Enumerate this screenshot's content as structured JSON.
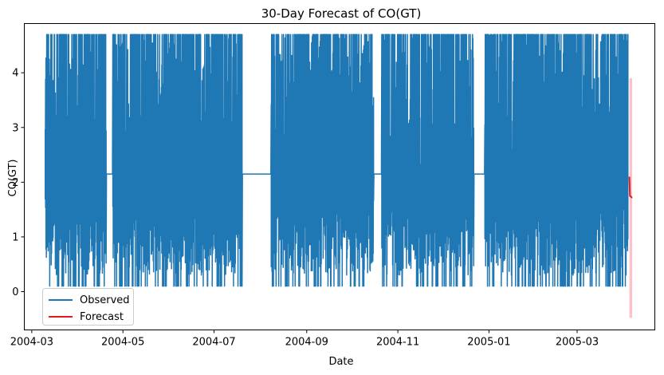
{
  "chart_data": {
    "type": "line",
    "title": "30-Day Forecast of CO(GT)",
    "xlabel": "Date",
    "ylabel": "CO(GT)",
    "xlim": [
      "2004-02-25",
      "2005-04-22"
    ],
    "ylim": [
      -0.7,
      4.9
    ],
    "x_ticks": [
      "2004-03",
      "2004-05",
      "2004-07",
      "2004-09",
      "2004-11",
      "2005-01",
      "2005-03"
    ],
    "y_ticks": [
      0,
      1,
      2,
      3,
      4
    ],
    "grid": false,
    "legend": {
      "position": "lower-left",
      "entries": [
        "Observed",
        "Forecast"
      ]
    },
    "colors": {
      "observed": "#1f77b4",
      "forecast": "#e31a1c",
      "confidence": "#ffc0cb"
    },
    "observed": {
      "name": "Observed",
      "start": "2004-03-10",
      "end": "2005-04-04",
      "min": 0.1,
      "max": 4.7,
      "fill_value": 2.15,
      "gaps": [
        [
          "2004-04-20",
          "2004-04-24"
        ],
        [
          "2004-07-20",
          "2004-08-08"
        ],
        [
          "2004-10-16",
          "2004-10-21"
        ],
        [
          "2004-12-22",
          "2004-12-29"
        ]
      ]
    },
    "forecast": {
      "name": "Forecast",
      "start": "2005-04-05",
      "end": "2005-04-06",
      "x": [
        "2005-04-05",
        "2005-04-05",
        "2005-04-06",
        "2005-04-06"
      ],
      "y": [
        2.1,
        1.75,
        1.72,
        1.72
      ],
      "lower": -0.48,
      "upper": 3.9
    }
  }
}
